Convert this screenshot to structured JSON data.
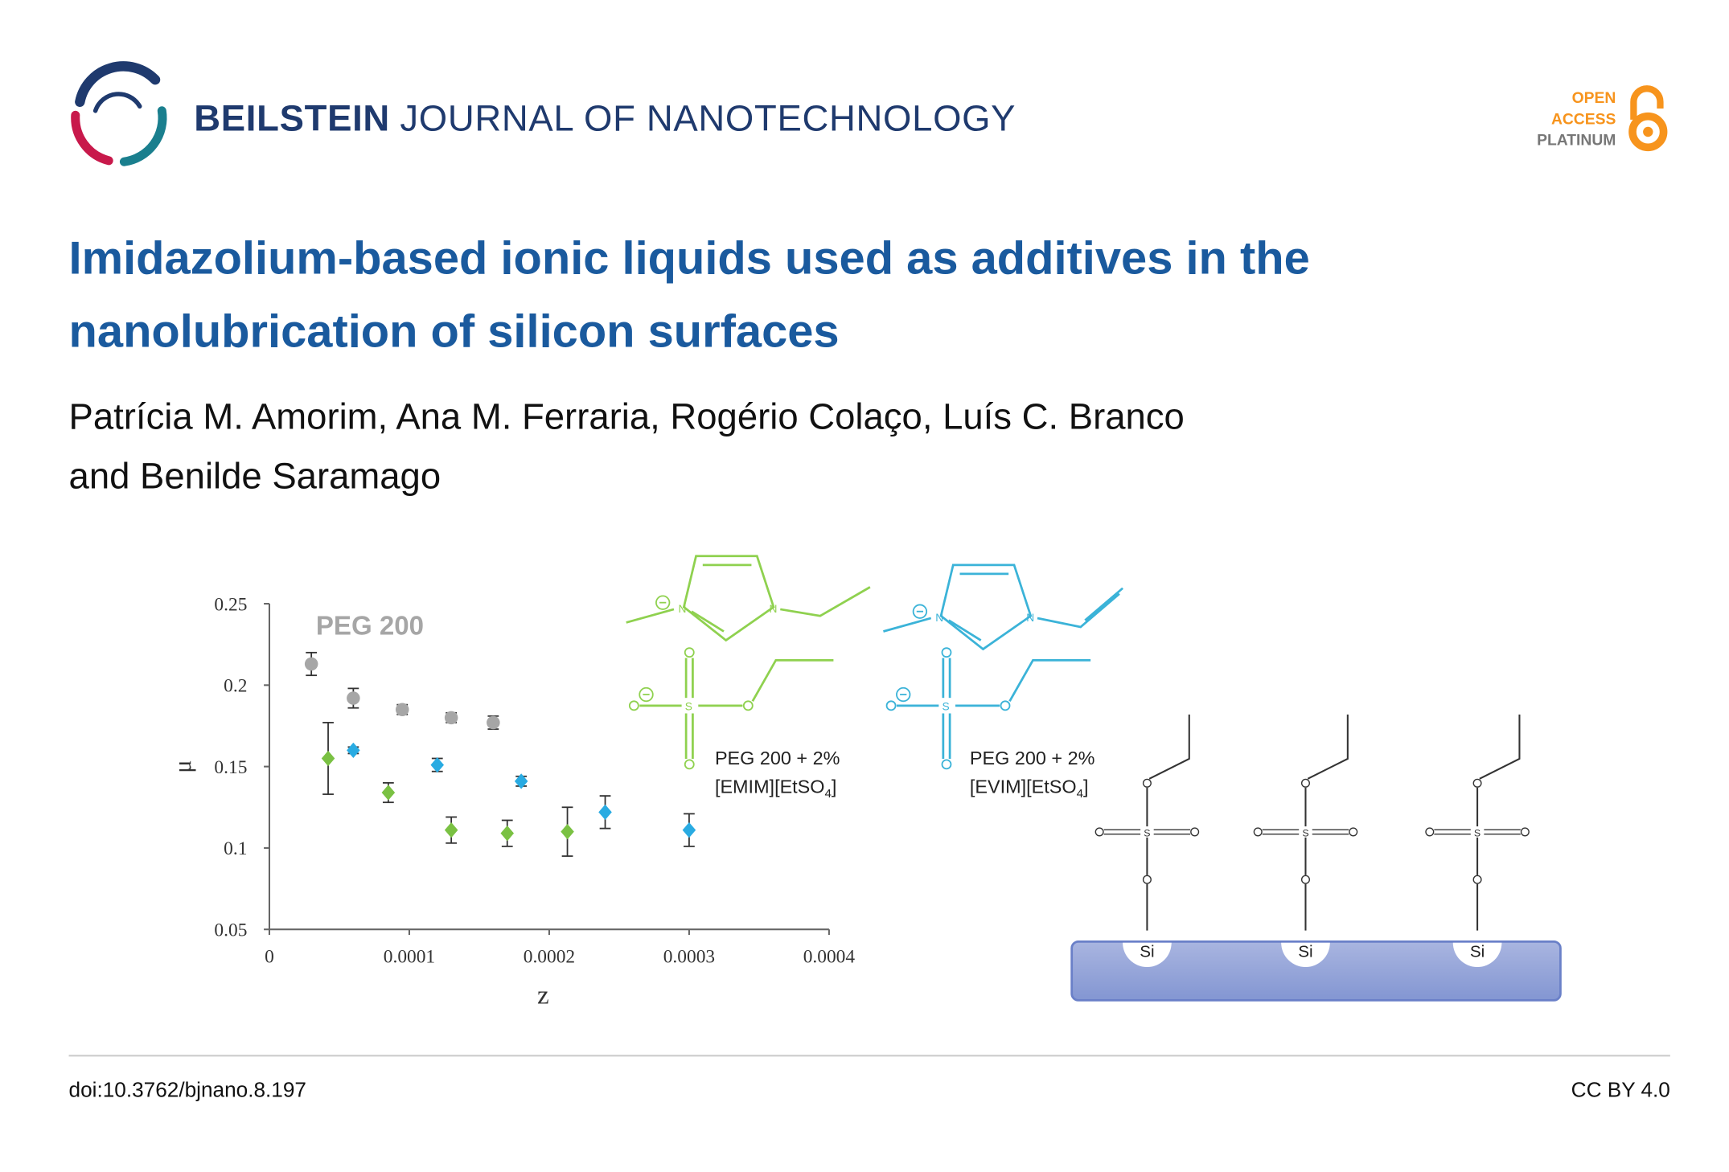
{
  "header": {
    "journal_bold": "BEILSTEIN",
    "journal_rest": "JOURNAL OF NANOTECHNOLOGY",
    "badge": [
      "OPEN",
      "ACCESS",
      "PLATINUM"
    ]
  },
  "article": {
    "title_lines": [
      "Imidazolium-based ionic liquids used as additives in the",
      "nanolubrication of silicon surfaces"
    ],
    "author_lines": [
      "Patrícia M. Amorim, Ana M. Ferraria, Rogério Colaço, Luís C. Branco",
      "and Benilde Saramago"
    ]
  },
  "figure": {
    "structures": [
      {
        "ring_atom": "N",
        "sulfonate_atom": "S",
        "caption_line1": "PEG 200 + 2%",
        "caption_line2": {
          "text": "[EMIM][EtSO",
          "sub": "4",
          "close": "]"
        }
      },
      {
        "ring_atom": "N",
        "sulfonate_atom": "S",
        "caption_line1": "PEG 200 + 2%",
        "caption_line2": {
          "text": "[EVIM][EtSO",
          "sub": "4",
          "close": "]"
        }
      }
    ],
    "chain_atom": "S",
    "surface_atoms": [
      "Si",
      "Si",
      "Si"
    ]
  },
  "chart_data": {
    "type": "scatter",
    "xlabel": "z",
    "ylabel": "μ",
    "xlim": [
      0,
      0.0004
    ],
    "xticks": [
      0,
      0.0001,
      0.0002,
      0.0003,
      0.0004
    ],
    "ylim": [
      0.05,
      0.25
    ],
    "yticks": [
      0.05,
      0.1,
      0.15,
      0.2,
      0.25
    ],
    "grid": false,
    "series": [
      {
        "name": "PEG 200",
        "color": "#a6a6a6",
        "marker": "circle",
        "x": [
          3e-05,
          6e-05,
          9.5e-05,
          0.00013,
          0.00016
        ],
        "values": [
          0.213,
          0.192,
          0.185,
          0.18,
          0.177
        ],
        "errors": [
          0.007,
          0.006,
          0.003,
          0.003,
          0.004
        ]
      },
      {
        "color": "#7ac143",
        "marker": "diamond",
        "x": [
          4.2e-05,
          8.5e-05,
          0.00013,
          0.00017,
          0.000213
        ],
        "values": [
          0.155,
          0.134,
          0.111,
          0.109,
          0.11
        ],
        "errors": [
          0.022,
          0.006,
          0.008,
          0.008,
          0.015
        ]
      },
      {
        "color": "#29abe2",
        "marker": "diamond",
        "x": [
          6e-05,
          0.00012,
          0.00018,
          0.00024,
          0.0003
        ],
        "values": [
          0.16,
          0.151,
          0.141,
          0.122,
          0.111
        ],
        "errors": [
          0.002,
          0.004,
          0.003,
          0.01,
          0.01
        ]
      }
    ]
  },
  "footer": {
    "doi": "doi:10.3762/bjnano.8.197",
    "license": "CC BY 4.0"
  }
}
